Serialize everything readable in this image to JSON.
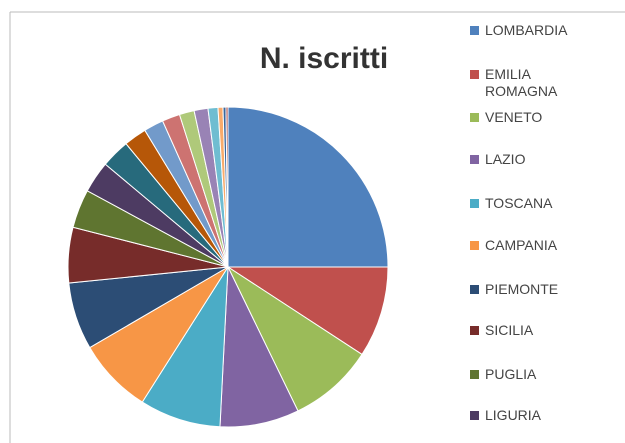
{
  "chart_data": {
    "type": "pie",
    "title": "N. iscritti",
    "categories": [
      "LOMBARDIA",
      "EMILIA ROMAGNA",
      "VENETO",
      "LAZIO",
      "TOSCANA",
      "CAMPANIA",
      "PIEMONTE",
      "SICILIA",
      "PUGLIA",
      "LIGURIA",
      null,
      null,
      null,
      null,
      null,
      null,
      null,
      null,
      null,
      null
    ],
    "values": [
      25,
      9.2,
      8.6,
      8,
      8.2,
      7.6,
      6.8,
      5.6,
      3.9,
      3.2,
      2.9,
      2.3,
      2.0,
      1.8,
      1.5,
      1.4,
      1.0,
      0.5,
      0.3,
      0.2
    ],
    "colors": [
      "#4F81BD",
      "#C0504D",
      "#9BBB59",
      "#8064A2",
      "#4BACC6",
      "#F79646",
      "#2C4D75",
      "#772C2A",
      "#5F7530",
      "#4D3B62",
      "#276A7C",
      "#B65708",
      "#729ACA",
      "#CD7371",
      "#AFC97A",
      "#9983B5",
      "#6FBDD1",
      "#F9AB6B",
      "#3A679C",
      "#9F3B38"
    ]
  }
}
